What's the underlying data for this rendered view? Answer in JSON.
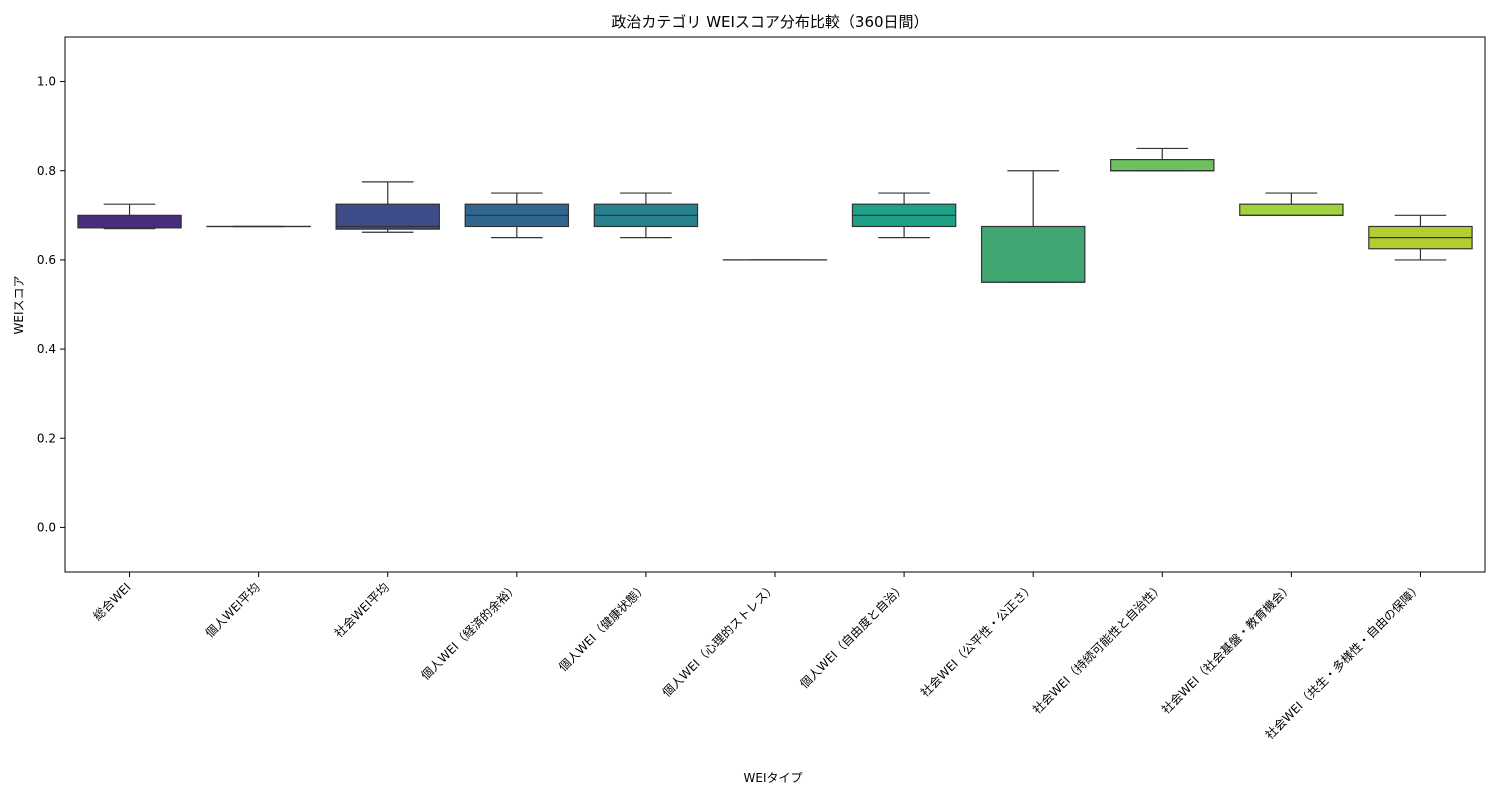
{
  "chart_data": {
    "type": "box",
    "title": "政治カテゴリ WEIスコア分布比較（360日間）",
    "xlabel": "WEIタイプ",
    "ylabel": "WEIスコア",
    "ylim": [
      -0.1,
      1.1
    ],
    "yticks": [
      "0.0",
      "0.2",
      "0.4",
      "0.6",
      "0.8",
      "1.0"
    ],
    "grid": false,
    "legend": "none",
    "categories": [
      "総合WEI",
      "個人WEI平均",
      "社会WEI平均",
      "個人WEI（経済的余裕）",
      "個人WEI（健康状態）",
      "個人WEI（心理的ストレス）",
      "個人WEI（自由度と自治）",
      "社会WEI（公平性・公正さ）",
      "社会WEI（持続可能性と自治性）",
      "社会WEI（社会基盤・教育機会）",
      "社会WEI（共生・多様性・自由の保障）"
    ],
    "boxes": [
      {
        "whisker_low": 0.67,
        "q1": 0.672,
        "median": 0.672,
        "q3": 0.7,
        "whisker_high": 0.725,
        "color": "#472d7b"
      },
      {
        "whisker_low": 0.675,
        "q1": 0.675,
        "median": 0.675,
        "q3": 0.675,
        "whisker_high": 0.675,
        "color": "#3b528b"
      },
      {
        "whisker_low": 0.662,
        "q1": 0.669,
        "median": 0.675,
        "q3": 0.725,
        "whisker_high": 0.775,
        "color": "#3e4c8a"
      },
      {
        "whisker_low": 0.65,
        "q1": 0.675,
        "median": 0.7,
        "q3": 0.725,
        "whisker_high": 0.75,
        "color": "#31678e"
      },
      {
        "whisker_low": 0.65,
        "q1": 0.675,
        "median": 0.7,
        "q3": 0.725,
        "whisker_high": 0.75,
        "color": "#26828e"
      },
      {
        "whisker_low": 0.6,
        "q1": 0.6,
        "median": 0.6,
        "q3": 0.6,
        "whisker_high": 0.6,
        "color": "#1f9e89"
      },
      {
        "whisker_low": 0.65,
        "q1": 0.675,
        "median": 0.7,
        "q3": 0.725,
        "whisker_high": 0.75,
        "color": "#1fa187"
      },
      {
        "whisker_low": 0.55,
        "q1": 0.55,
        "median": 0.55,
        "q3": 0.675,
        "whisker_high": 0.8,
        "color": "#42a673"
      },
      {
        "whisker_low": 0.8,
        "q1": 0.8,
        "median": 0.8,
        "q3": 0.825,
        "whisker_high": 0.85,
        "color": "#6cc15d"
      },
      {
        "whisker_low": 0.7,
        "q1": 0.7,
        "median": 0.7,
        "q3": 0.725,
        "whisker_high": 0.75,
        "color": "#a0d43a"
      },
      {
        "whisker_low": 0.6,
        "q1": 0.625,
        "median": 0.65,
        "q3": 0.675,
        "whisker_high": 0.7,
        "color": "#b5cc33"
      }
    ]
  }
}
